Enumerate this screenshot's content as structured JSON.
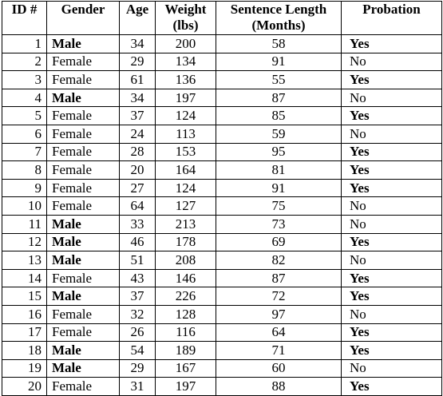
{
  "headers": {
    "id": "ID #",
    "gender": "Gender",
    "age": "Age",
    "weight_line1": "Weight",
    "weight_line2": "(lbs)",
    "sentence_line1": "Sentence Length",
    "sentence_line2": "(Months)",
    "probation": "Probation"
  },
  "rows": [
    {
      "id": "1",
      "gender": "Male",
      "age": "34",
      "weight": "200",
      "sentence": "58",
      "probation": "Yes"
    },
    {
      "id": "2",
      "gender": "Female",
      "age": "29",
      "weight": "134",
      "sentence": "91",
      "probation": "No"
    },
    {
      "id": "3",
      "gender": "Female",
      "age": "61",
      "weight": "136",
      "sentence": "55",
      "probation": "Yes"
    },
    {
      "id": "4",
      "gender": "Male",
      "age": "34",
      "weight": "197",
      "sentence": "87",
      "probation": "No"
    },
    {
      "id": "5",
      "gender": "Female",
      "age": "37",
      "weight": "124",
      "sentence": "85",
      "probation": "Yes"
    },
    {
      "id": "6",
      "gender": "Female",
      "age": "24",
      "weight": "113",
      "sentence": "59",
      "probation": "No"
    },
    {
      "id": "7",
      "gender": "Female",
      "age": "28",
      "weight": "153",
      "sentence": "95",
      "probation": "Yes"
    },
    {
      "id": "8",
      "gender": "Female",
      "age": "20",
      "weight": "164",
      "sentence": "81",
      "probation": "Yes"
    },
    {
      "id": "9",
      "gender": "Female",
      "age": "27",
      "weight": "124",
      "sentence": "91",
      "probation": "Yes"
    },
    {
      "id": "10",
      "gender": "Female",
      "age": "64",
      "weight": "127",
      "sentence": "75",
      "probation": "No"
    },
    {
      "id": "11",
      "gender": "Male",
      "age": "33",
      "weight": "213",
      "sentence": "73",
      "probation": "No"
    },
    {
      "id": "12",
      "gender": "Male",
      "age": "46",
      "weight": "178",
      "sentence": "69",
      "probation": "Yes"
    },
    {
      "id": "13",
      "gender": "Male",
      "age": "51",
      "weight": "208",
      "sentence": "82",
      "probation": "No"
    },
    {
      "id": "14",
      "gender": "Female",
      "age": "43",
      "weight": "146",
      "sentence": "87",
      "probation": "Yes"
    },
    {
      "id": "15",
      "gender": "Male",
      "age": "37",
      "weight": "226",
      "sentence": "72",
      "probation": "Yes"
    },
    {
      "id": "16",
      "gender": "Female",
      "age": "32",
      "weight": "128",
      "sentence": "97",
      "probation": "No"
    },
    {
      "id": "17",
      "gender": "Female",
      "age": "26",
      "weight": "116",
      "sentence": "64",
      "probation": "Yes"
    },
    {
      "id": "18",
      "gender": "Male",
      "age": "54",
      "weight": "189",
      "sentence": "71",
      "probation": "Yes"
    },
    {
      "id": "19",
      "gender": "Male",
      "age": "29",
      "weight": "167",
      "sentence": "60",
      "probation": "No"
    },
    {
      "id": "20",
      "gender": "Female",
      "age": "31",
      "weight": "197",
      "sentence": "88",
      "probation": "Yes"
    }
  ]
}
